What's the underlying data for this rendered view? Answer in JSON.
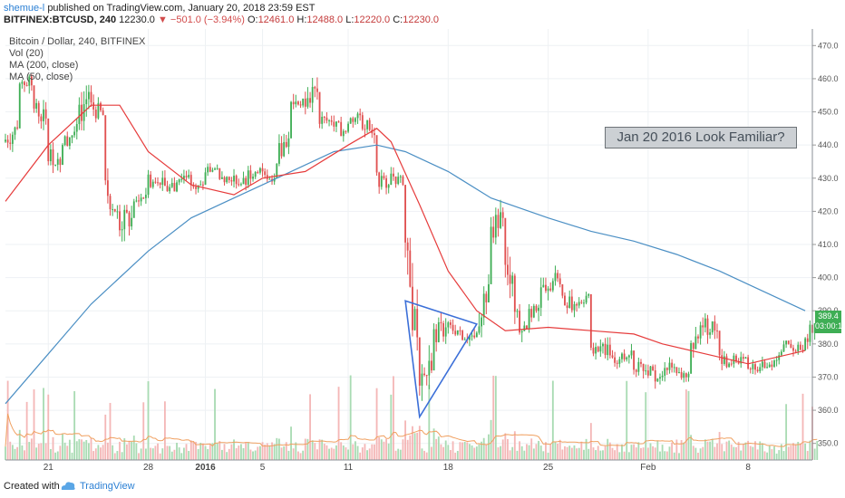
{
  "header": {
    "username": "shemue-l",
    "published_text": "published on TradingView.com, January 20, 2018 23:59 EST",
    "symbol": "BITFINEX:BTCUSD, 240",
    "last": "12230.0",
    "change_arrow": "▼",
    "change": "−501.0 (−3.94%)",
    "open_label": "O:",
    "open": "12461.0",
    "high_label": "H:",
    "high": "12488.0",
    "low_label": "L:",
    "low": "12220.0",
    "close_label": "C:",
    "close": "12230.0"
  },
  "legend": {
    "title": "Bitcoin / Dollar, 240, BITFINEX",
    "vol": "Vol (20)",
    "ma200": "MA (200, close)",
    "ma50": "MA (50, close)"
  },
  "annotation": "Jan 20 2016 Look Familiar?",
  "price_tag": {
    "value": "389.4",
    "countdown": "03:00:1"
  },
  "footer": {
    "created": "Created with",
    "brand": "TradingView"
  },
  "colors": {
    "up": "#3fae55",
    "down": "#e05050",
    "ma50": "#e63c3c",
    "ma200": "#4b8fc4",
    "triangle": "#3b6fd8",
    "vol_up": "#a9dbb3",
    "vol_down": "#f4b7b7",
    "vol_ma": "#f0a060"
  },
  "chart_data": {
    "type": "candlestick",
    "ylim": [
      345,
      475
    ],
    "y_ticks": [
      350,
      360,
      370,
      380,
      390,
      400,
      410,
      420,
      430,
      440,
      450,
      460,
      470
    ],
    "x_tick_labels": [
      "21",
      "28",
      "2016",
      "5",
      "11",
      "18",
      "25",
      "Feb",
      "8"
    ],
    "ohlc_anchors": [
      [
        "Dec 18",
        441,
        448,
        434,
        445
      ],
      [
        "Dec 19",
        460,
        466,
        454,
        458
      ],
      [
        "Dec 20",
        452,
        456,
        443,
        448
      ],
      [
        "Dec 21",
        438,
        442,
        430,
        434
      ],
      [
        "Dec 22",
        440,
        446,
        436,
        444
      ],
      [
        "Dec 23",
        445,
        460,
        441,
        456
      ],
      [
        "Dec 24",
        452,
        458,
        446,
        449
      ],
      [
        "Dec 25",
        428,
        434,
        416,
        420
      ],
      [
        "Dec 26",
        416,
        422,
        405,
        418
      ],
      [
        "Dec 27",
        422,
        428,
        418,
        425
      ],
      [
        "Dec 28",
        430,
        434,
        424,
        428
      ],
      [
        "Dec 29",
        428,
        433,
        422,
        426
      ],
      [
        "Dec 30",
        430,
        434,
        425,
        431
      ],
      [
        "Dec 31",
        430,
        434,
        424,
        428
      ],
      [
        "Jan 01",
        432,
        436,
        428,
        433
      ],
      [
        "Jan 02",
        432,
        435,
        427,
        429
      ],
      [
        "Jan 03",
        430,
        434,
        425,
        428
      ],
      [
        "Jan 04",
        431,
        436,
        427,
        433
      ],
      [
        "Jan 05",
        432,
        436,
        428,
        430
      ],
      [
        "Jan 06",
        436,
        444,
        432,
        442
      ],
      [
        "Jan 07",
        452,
        458,
        446,
        454
      ],
      [
        "Jan 08",
        454,
        464,
        448,
        456
      ],
      [
        "Jan 09",
        448,
        452,
        443,
        447
      ],
      [
        "Jan 10",
        446,
        450,
        441,
        444
      ],
      [
        "Jan 11",
        447,
        451,
        443,
        449
      ],
      [
        "Jan 12",
        447,
        452,
        440,
        443
      ],
      [
        "Jan 13",
        430,
        434,
        424,
        428
      ],
      [
        "Jan 14",
        432,
        434,
        425,
        428
      ],
      [
        "Jan 15",
        410,
        412,
        378,
        382
      ],
      [
        "Jan 16",
        370,
        381,
        358,
        372
      ],
      [
        "Jan 17",
        382,
        390,
        376,
        385
      ],
      [
        "Jan 18",
        385,
        389,
        380,
        384
      ],
      [
        "Jan 19",
        383,
        388,
        379,
        382
      ],
      [
        "Jan 20",
        385,
        402,
        382,
        398
      ],
      [
        "Jan 21",
        415,
        428,
        410,
        418
      ],
      [
        "Jan 22",
        405,
        412,
        386,
        390
      ],
      [
        "Jan 23",
        384,
        392,
        377,
        388
      ],
      [
        "Jan 24",
        390,
        400,
        385,
        396
      ],
      [
        "Jan 25",
        400,
        406,
        392,
        398
      ],
      [
        "Jan 26",
        394,
        398,
        388,
        392
      ],
      [
        "Jan 27",
        392,
        397,
        388,
        395
      ],
      [
        "Jan 28",
        378,
        382,
        372,
        380
      ],
      [
        "Jan 29",
        378,
        382,
        368,
        374
      ],
      [
        "Jan 30",
        376,
        380,
        371,
        378
      ],
      [
        "Jan 31",
        374,
        378,
        368,
        372
      ],
      [
        "Feb 01",
        372,
        376,
        366,
        370
      ],
      [
        "Feb 02",
        372,
        376,
        367,
        373
      ],
      [
        "Feb 03",
        370,
        374,
        366,
        371
      ],
      [
        "Feb 04",
        378,
        388,
        374,
        385
      ],
      [
        "Feb 05",
        386,
        392,
        380,
        384
      ],
      [
        "Feb 06",
        376,
        380,
        371,
        374
      ],
      [
        "Feb 07",
        375,
        378,
        371,
        376
      ],
      [
        "Feb 08",
        374,
        377,
        370,
        373
      ],
      [
        "Feb 09",
        373,
        377,
        370,
        375
      ],
      [
        "Feb 10",
        376,
        381,
        373,
        380
      ],
      [
        "Feb 11",
        380,
        384,
        376,
        378
      ],
      [
        "Feb 12",
        380,
        390,
        378,
        389
      ]
    ],
    "ma50_points": [
      [
        "Dec 18",
        423
      ],
      [
        "Dec 21",
        440
      ],
      [
        "Dec 24",
        452
      ],
      [
        "Dec 26",
        452
      ],
      [
        "Dec 28",
        438
      ],
      [
        "Dec 31",
        428
      ],
      [
        "Jan 03",
        425
      ],
      [
        "Jan 05",
        430
      ],
      [
        "Jan 08",
        432
      ],
      [
        "Jan 11",
        440
      ],
      [
        "Jan 13",
        445
      ],
      [
        "Jan 14",
        441
      ],
      [
        "Jan 16",
        422
      ],
      [
        "Jan 18",
        402
      ],
      [
        "Jan 20",
        390
      ],
      [
        "Jan 22",
        384
      ],
      [
        "Jan 25",
        385
      ],
      [
        "Jan 28",
        384
      ],
      [
        "Jan 31",
        383
      ],
      [
        "Feb 02",
        380
      ],
      [
        "Feb 05",
        377
      ],
      [
        "Feb 08",
        374
      ],
      [
        "Feb 12",
        378
      ]
    ],
    "ma200_points": [
      [
        "Dec 18",
        362
      ],
      [
        "Dec 21",
        377
      ],
      [
        "Dec 24",
        392
      ],
      [
        "Dec 28",
        408
      ],
      [
        "Dec 31",
        418
      ],
      [
        "Jan 03",
        424
      ],
      [
        "Jan 06",
        430
      ],
      [
        "Jan 10",
        438
      ],
      [
        "Jan 13",
        440
      ],
      [
        "Jan 15",
        438
      ],
      [
        "Jan 18",
        432
      ],
      [
        "Jan 21",
        424
      ],
      [
        "Jan 25",
        418
      ],
      [
        "Jan 28",
        414
      ],
      [
        "Jan 31",
        411
      ],
      [
        "Feb 03",
        407
      ],
      [
        "Feb 06",
        402
      ],
      [
        "Feb 09",
        396
      ],
      [
        "Feb 12",
        390
      ]
    ],
    "triangle": [
      [
        "Jan 15",
        393
      ],
      [
        "Jan 20",
        386
      ],
      [
        "Jan 16",
        358
      ]
    ]
  }
}
